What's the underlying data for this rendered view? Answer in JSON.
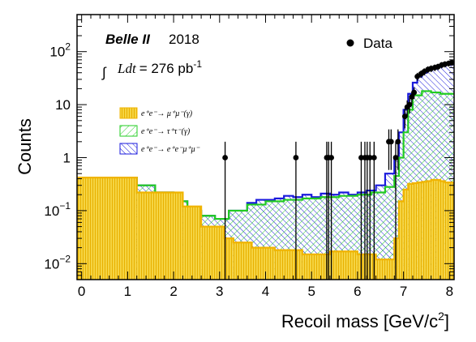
{
  "chart_data": {
    "type": "histogram",
    "xlabel": "Recoil mass [GeV/c²]",
    "xlabel_main": "Recoil mass [GeV/c",
    "xlabel_sup": "2",
    "xlabel_end": "]",
    "ylabel": "Counts",
    "xlim": [
      -0.1,
      8.1
    ],
    "ylim": [
      0.005,
      500
    ],
    "yscale": "log",
    "grid": false,
    "x_ticks": [
      "0",
      "1",
      "2",
      "3",
      "4",
      "5",
      "6",
      "7",
      "8"
    ],
    "y_ticks": [
      {
        "value": 0.01,
        "base": "10",
        "exp": "−2"
      },
      {
        "value": 0.1,
        "base": "10",
        "exp": "−1"
      },
      {
        "value": 1,
        "base": "1",
        "exp": ""
      },
      {
        "value": 10,
        "base": "10",
        "exp": ""
      },
      {
        "value": 100,
        "base": "10",
        "exp": "2"
      }
    ],
    "annotations": {
      "experiment": "Belle II",
      "year": "2018",
      "lumi_integral": "∫",
      "lumi_var": "Ldt",
      "lumi_value": "= 276 pb",
      "lumi_unit_sup": "-1"
    },
    "legend": {
      "position": "left-middle",
      "data_label": "Data",
      "mumu_label": "e⁺e⁻→ μ⁺μ⁻(γ)",
      "tautau_label": "e⁺e⁻→ τ⁺τ⁻(γ)",
      "eemumu_label": "e⁺e⁻→ e⁺e⁻μ⁺μ⁻"
    },
    "colors": {
      "mumu_fill": "#f5d442",
      "mumu_line": "#f0b400",
      "tautau_line": "#22cc22",
      "eemumu_line": "#1a1adc",
      "data": "#000000"
    },
    "series": [
      {
        "name": "e⁺e⁻→ μ⁺μ⁻(γ)",
        "edges": [
          -0.1,
          1.2,
          2.2,
          2.6,
          3.1,
          3.3,
          3.7,
          4.2,
          4.8,
          5.4,
          6.0,
          6.4,
          6.8,
          6.9,
          7.0,
          7.1,
          7.2,
          7.3,
          7.4,
          7.5,
          7.6,
          7.7,
          7.8,
          7.9,
          8.1
        ],
        "values": [
          0.42,
          0.22,
          0.12,
          0.05,
          0.03,
          0.025,
          0.02,
          0.018,
          0.015,
          0.017,
          0.015,
          0.012,
          0.03,
          0.15,
          0.25,
          0.32,
          0.33,
          0.34,
          0.35,
          0.36,
          0.38,
          0.38,
          0.36,
          0.34
        ]
      },
      {
        "name": "e⁺e⁻→ τ⁺τ⁻(γ)",
        "edges": [
          -0.1,
          1.2,
          1.6,
          2.0,
          2.3,
          2.6,
          2.9,
          3.2,
          3.6,
          4.0,
          4.4,
          4.8,
          5.2,
          5.6,
          6.0,
          6.3,
          6.6,
          6.8,
          6.9,
          7.0,
          7.1,
          7.2,
          7.4,
          7.6,
          7.8,
          8.1
        ],
        "values": [
          0.42,
          0.3,
          0.22,
          0.15,
          0.1,
          0.08,
          0.07,
          0.1,
          0.13,
          0.15,
          0.16,
          0.17,
          0.18,
          0.19,
          0.2,
          0.22,
          0.28,
          0.45,
          1.0,
          3.0,
          8.0,
          15.0,
          18.0,
          17.0,
          16.0
        ]
      },
      {
        "name": "e⁺e⁻→ e⁺e⁻μ⁺μ⁻",
        "edges": [
          -0.1,
          1.2,
          1.6,
          2.0,
          2.3,
          2.6,
          2.9,
          3.2,
          3.6,
          3.8,
          4.0,
          4.2,
          4.4,
          4.6,
          4.8,
          5.0,
          5.2,
          5.4,
          5.6,
          5.8,
          6.0,
          6.2,
          6.4,
          6.6,
          6.8,
          6.9,
          7.0,
          7.1,
          7.2,
          7.3,
          7.4,
          7.5,
          7.6,
          7.7,
          7.8,
          7.9,
          8.1
        ],
        "values": [
          0.42,
          0.3,
          0.22,
          0.15,
          0.1,
          0.08,
          0.07,
          0.1,
          0.14,
          0.16,
          0.16,
          0.17,
          0.19,
          0.18,
          0.2,
          0.18,
          0.21,
          0.2,
          0.22,
          0.2,
          0.22,
          0.24,
          0.3,
          0.5,
          1.0,
          3.0,
          8.0,
          16.0,
          26.0,
          34.0,
          40.0,
          45.0,
          48.0,
          52.0,
          55.0,
          57.0
        ]
      },
      {
        "name": "Data",
        "x": [
          3.12,
          4.66,
          5.33,
          5.37,
          5.43,
          6.08,
          6.16,
          6.21,
          6.27,
          6.36,
          6.68,
          6.73,
          6.83,
          6.88,
          7.03,
          7.08,
          7.13,
          7.18,
          7.23,
          7.3,
          7.38,
          7.45,
          7.53,
          7.6,
          7.68,
          7.75,
          7.83,
          7.9,
          7.98,
          8.05
        ],
        "y": [
          1,
          1,
          1,
          1,
          1,
          1,
          1,
          1,
          1,
          1,
          2,
          2,
          1,
          2,
          6,
          9,
          10,
          14,
          17,
          34,
          38,
          42,
          46,
          48,
          50,
          52,
          56,
          58,
          60,
          62
        ]
      }
    ]
  }
}
